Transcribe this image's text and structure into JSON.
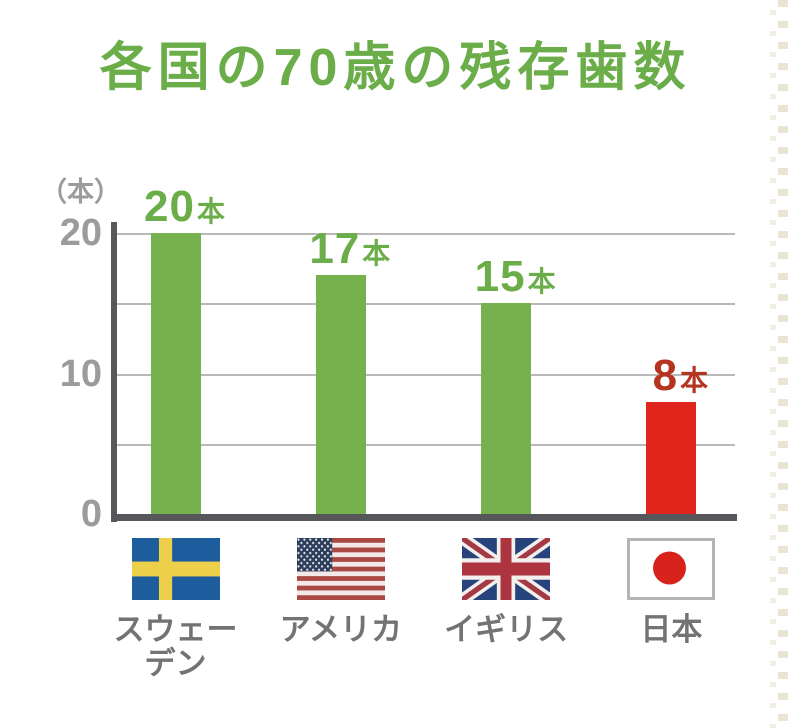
{
  "title": {
    "text": "各国の70歳の残存歯数"
  },
  "colors": {
    "title_green": "#6aad49",
    "bar_green": "#76b14d",
    "bar_red": "#e0261c",
    "value_label_green": "#6aad49",
    "value_label_red": "#b43420",
    "axis": "#57575b",
    "gridline": "#b9b9b9",
    "tick_text": "#9b9b9b",
    "category_text": "#737373"
  },
  "y_axis": {
    "unit_label": "（本）",
    "ticks": [
      {
        "label": "20",
        "value": 20
      },
      {
        "label": "10",
        "value": 10
      },
      {
        "label": "0",
        "value": 0
      }
    ]
  },
  "chart_data": {
    "type": "bar",
    "title": "各国の70歳の残存歯数",
    "xlabel": "",
    "ylabel": "（本）",
    "categories": [
      "スウェーデン",
      "アメリカ",
      "イギリス",
      "日本"
    ],
    "values": [
      20,
      17,
      15,
      8
    ],
    "bar_labels": [
      {
        "number": "20",
        "suffix": "本"
      },
      {
        "number": "17",
        "suffix": "本"
      },
      {
        "number": "15",
        "suffix": "本"
      },
      {
        "number": "8",
        "suffix": "本"
      }
    ],
    "bar_colors": [
      "#76b14d",
      "#76b14d",
      "#76b14d",
      "#e0261c"
    ],
    "value_label_colors": [
      "#6aad49",
      "#6aad49",
      "#6aad49",
      "#b43420"
    ],
    "flags": [
      "sweden",
      "usa",
      "uk",
      "japan"
    ],
    "ylim": [
      0,
      20
    ],
    "ytick_values": [
      20,
      10,
      0
    ],
    "gridline_values": [
      5,
      10,
      15,
      20
    ],
    "grid": true,
    "legend": "none"
  }
}
